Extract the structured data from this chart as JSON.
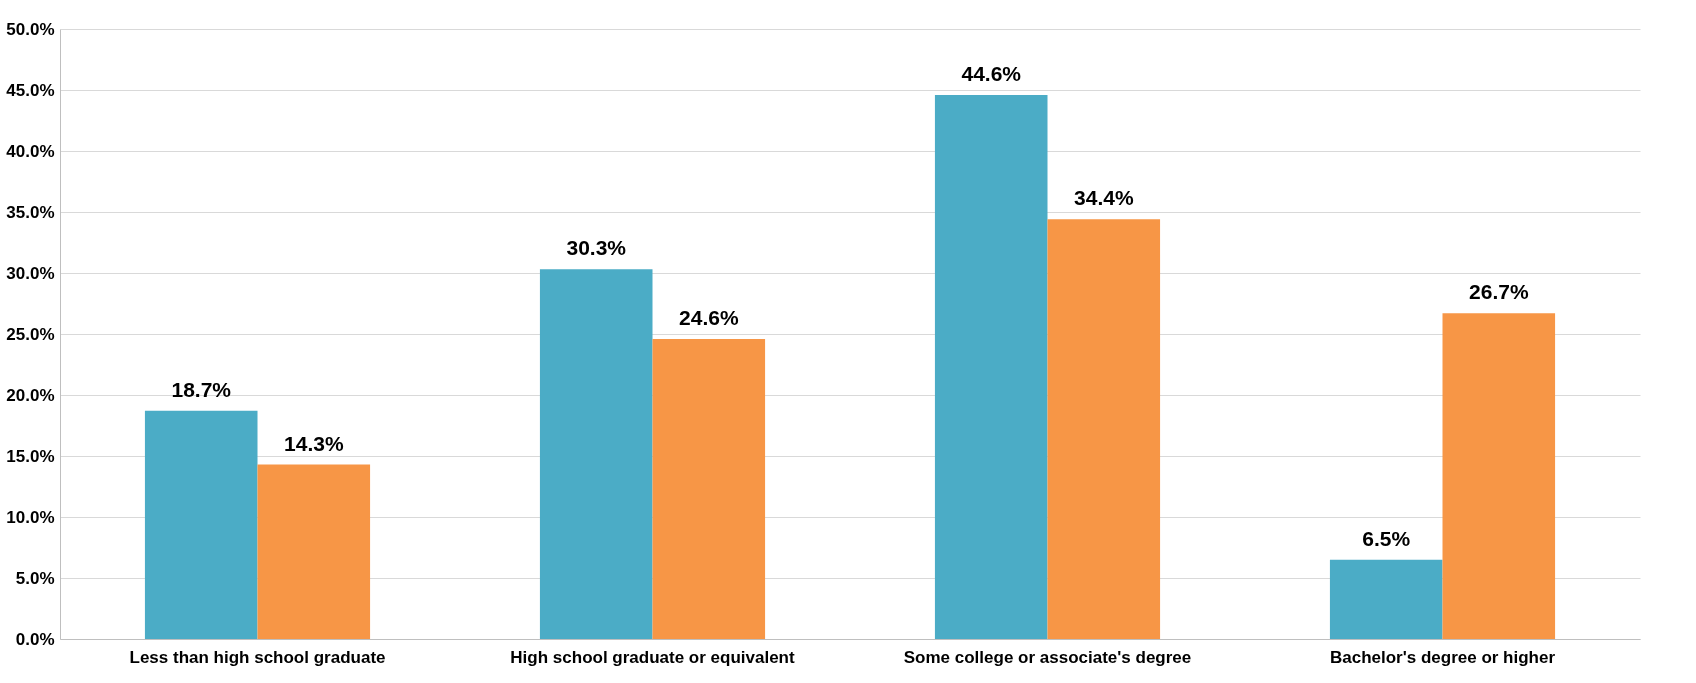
{
  "chart_data": {
    "type": "bar",
    "categories": [
      "Less than high school graduate",
      "High school graduate or equivalent",
      "Some college or associate's degree",
      "Bachelor's degree or higher"
    ],
    "series": [
      {
        "color": "#4bacc6",
        "values": [
          18.7,
          30.3,
          44.6,
          6.5
        ],
        "value_labels": [
          "18.7%",
          "30.3%",
          "44.6%",
          "6.5%"
        ]
      },
      {
        "color": "#f79646",
        "values": [
          14.3,
          24.6,
          34.4,
          26.7
        ],
        "value_labels": [
          "14.3%",
          "24.6%",
          "34.4%",
          "26.7%"
        ]
      }
    ],
    "ylim": [
      0,
      50
    ],
    "yticks": [
      {
        "value": 0,
        "label": "0.0%"
      },
      {
        "value": 5,
        "label": "5.0%"
      },
      {
        "value": 10,
        "label": "10.0%"
      },
      {
        "value": 15,
        "label": "15.0%"
      },
      {
        "value": 20,
        "label": "20.0%"
      },
      {
        "value": 25,
        "label": "25.0%"
      },
      {
        "value": 30,
        "label": "30.0%"
      },
      {
        "value": 35,
        "label": "35.0%"
      },
      {
        "value": 40,
        "label": "40.0%"
      },
      {
        "value": 45,
        "label": "45.0%"
      },
      {
        "value": 50,
        "label": "50.0%"
      }
    ],
    "grid": "y",
    "legend": false
  }
}
